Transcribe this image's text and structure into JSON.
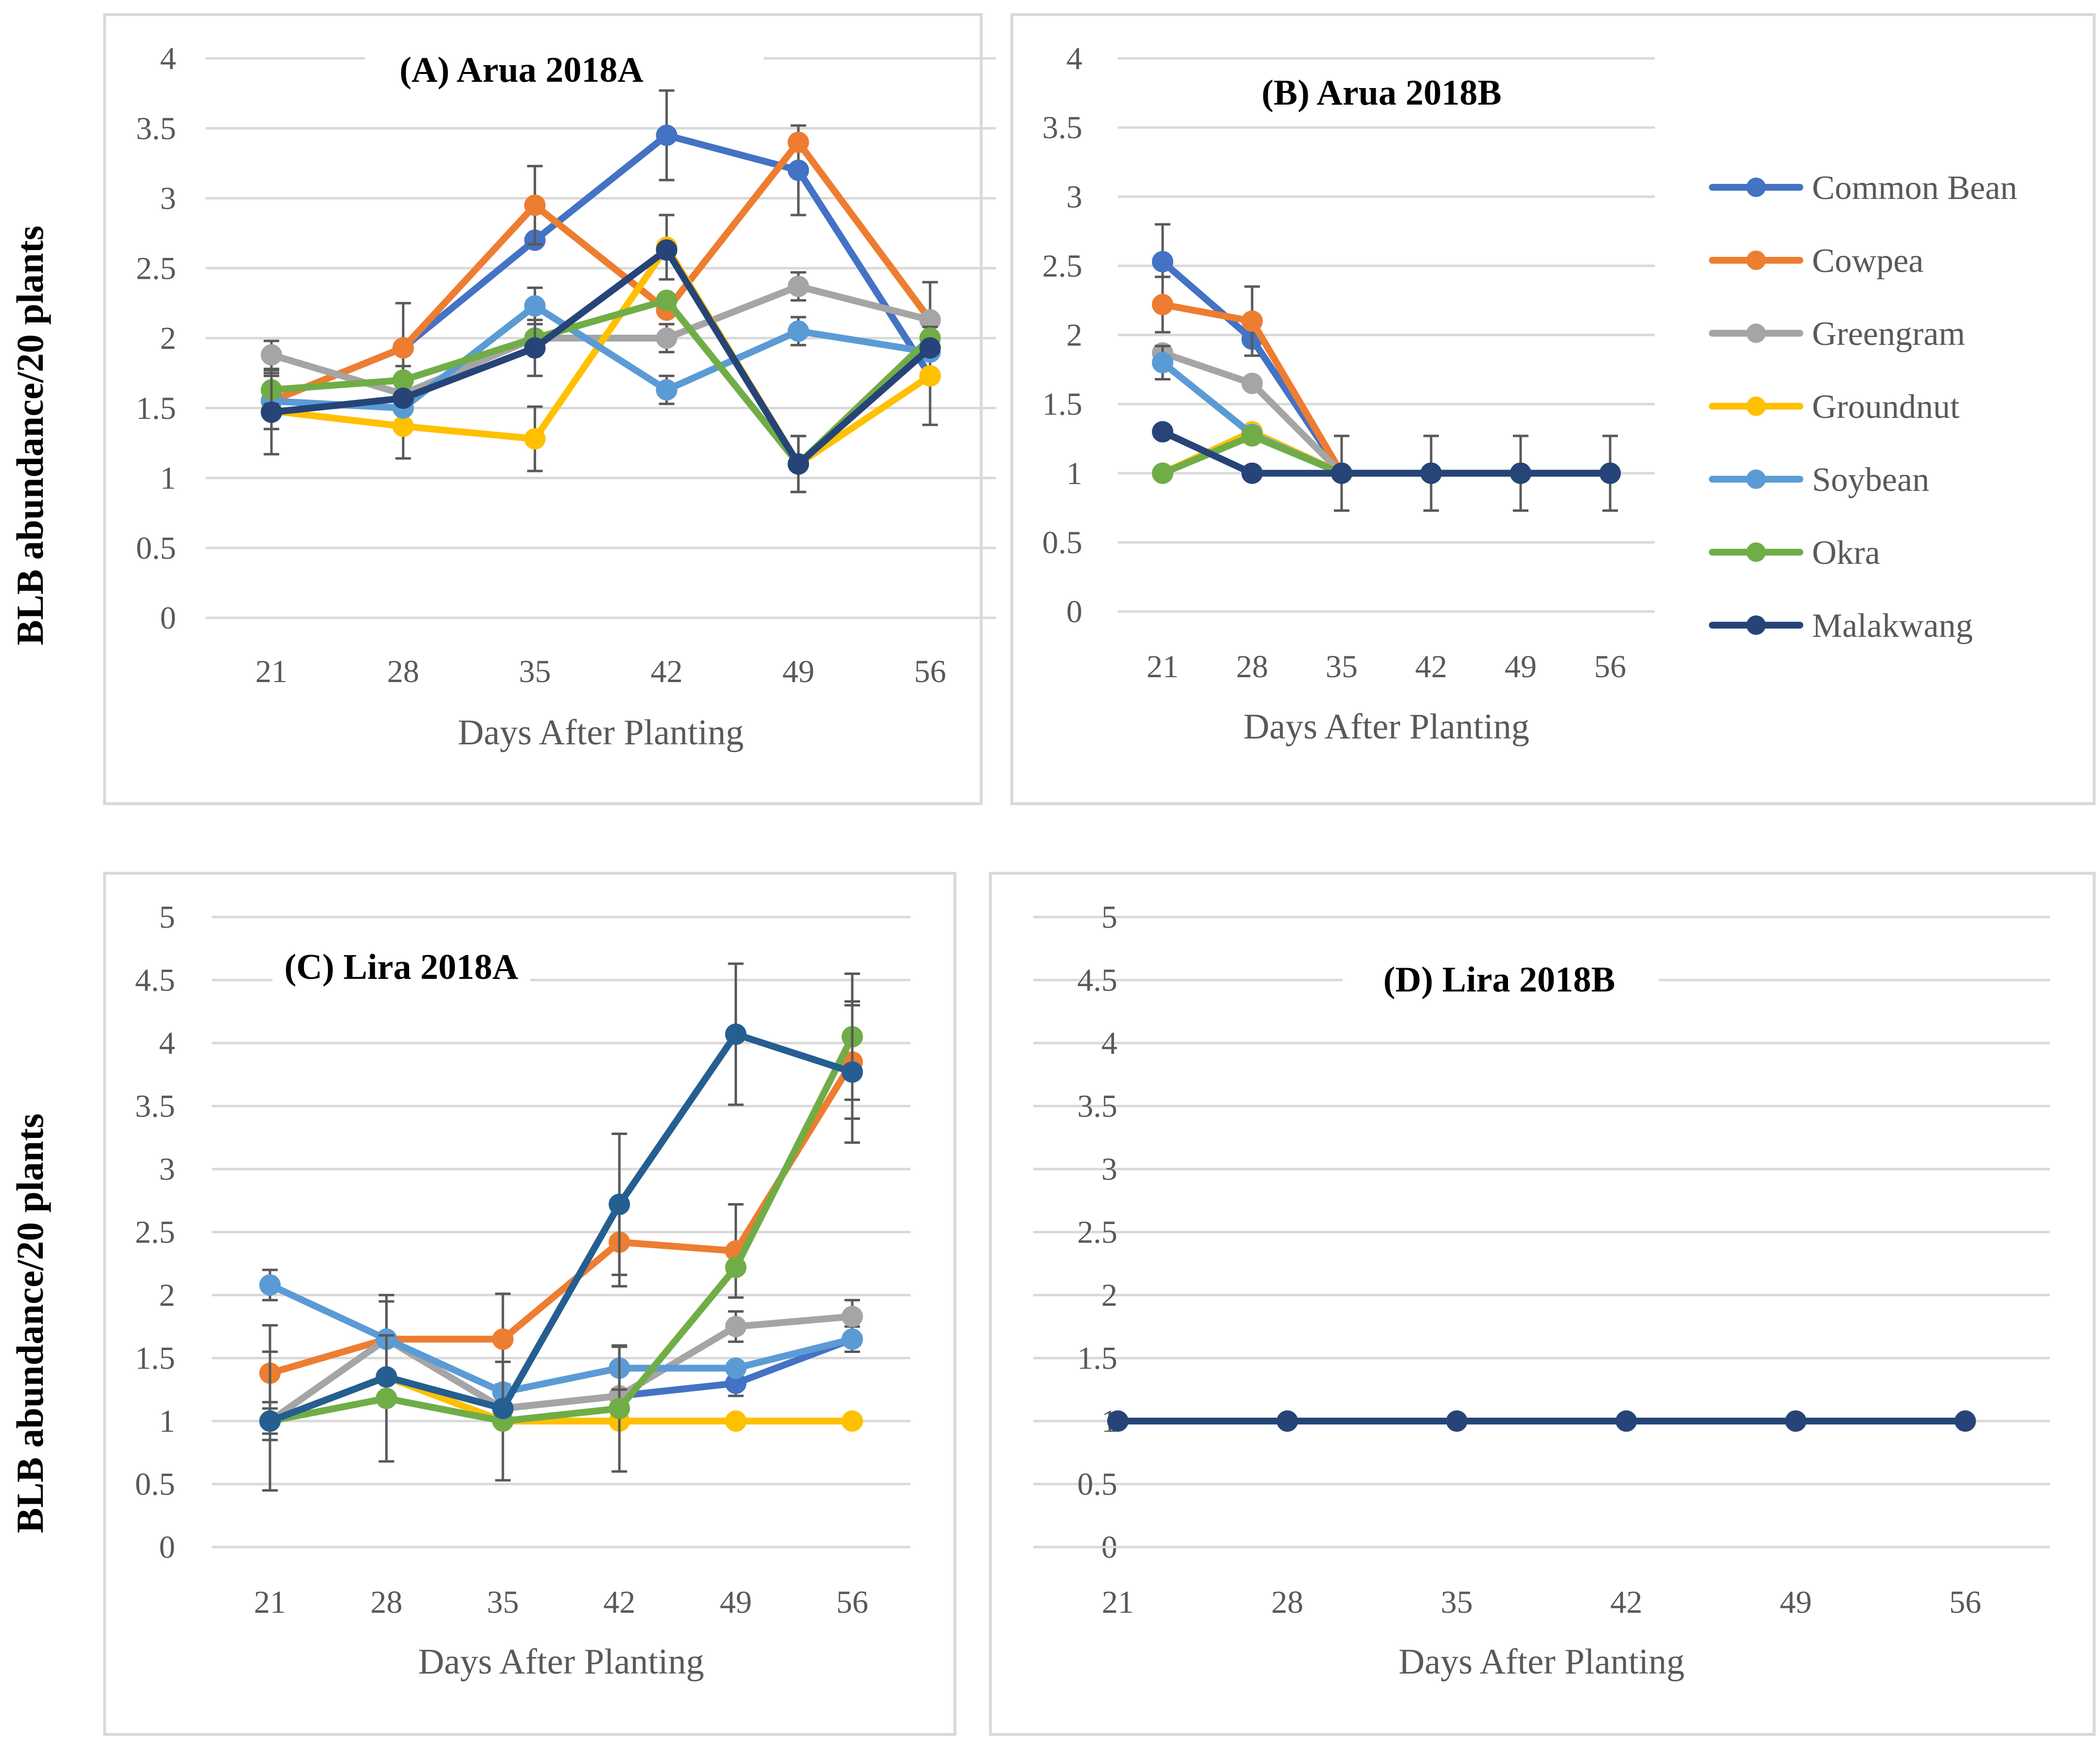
{
  "figure": {
    "y_axis_label": "BLB abundance/20 plants",
    "legend": [
      {
        "name": "Common Bean",
        "color": "#4472c4"
      },
      {
        "name": "Cowpea",
        "color": "#ed7d31"
      },
      {
        "name": "Greengram",
        "color": "#a5a5a5"
      },
      {
        "name": "Groundnut",
        "color": "#ffc000"
      },
      {
        "name": "Soybean",
        "color": "#5b9bd5"
      },
      {
        "name": "Okra",
        "color": "#70ad47"
      },
      {
        "name": "Malakwang",
        "color": "#264478"
      }
    ]
  },
  "chart_data": [
    {
      "type": "line",
      "title": "(A)  Arua 2018A",
      "xlabel": "Days After Planting",
      "ylabel": "BLB abundance/20 plants",
      "x": [
        "21",
        "28",
        "35",
        "42",
        "49",
        "56"
      ],
      "ylim": [
        0,
        4
      ],
      "ytick_step": 0.5,
      "yticks": [
        "0",
        "0.5",
        "1",
        "1.5",
        "2",
        "2.5",
        "3",
        "3.5",
        "4"
      ],
      "series": [
        {
          "name": "Common Bean",
          "color": "#4472c4",
          "values": [
            1.55,
            1.93,
            2.7,
            3.45,
            3.2,
            1.73
          ],
          "errors": [
            0,
            0,
            0,
            0.32,
            0.32,
            0
          ]
        },
        {
          "name": "Cowpea",
          "color": "#ed7d31",
          "values": [
            1.55,
            1.93,
            2.95,
            2.2,
            3.4,
            2.13
          ],
          "errors": [
            0,
            0.32,
            0.28,
            0,
            0,
            0.27
          ]
        },
        {
          "name": "Greengram",
          "color": "#a5a5a5",
          "values": [
            1.88,
            1.6,
            2.0,
            2.0,
            2.37,
            2.13
          ],
          "errors": [
            0.1,
            0,
            0,
            0.1,
            0.1,
            0
          ]
        },
        {
          "name": "Groundnut",
          "color": "#ffc000",
          "values": [
            1.48,
            1.37,
            1.28,
            2.65,
            1.1,
            1.73
          ],
          "errors": [
            0,
            0.23,
            0.23,
            0.23,
            0,
            0.35
          ]
        },
        {
          "name": "Soybean",
          "color": "#5b9bd5",
          "values": [
            1.55,
            1.5,
            2.23,
            1.63,
            2.05,
            1.9
          ],
          "errors": [
            0.2,
            0,
            0.13,
            0.1,
            0.1,
            0
          ]
        },
        {
          "name": "Okra",
          "color": "#70ad47",
          "values": [
            1.63,
            1.7,
            2.0,
            2.27,
            1.1,
            2.0
          ],
          "errors": [
            0.1,
            0.1,
            0,
            0,
            0.2,
            0
          ]
        },
        {
          "name": "Malakwang",
          "color": "#264478",
          "values": [
            1.47,
            1.57,
            1.93,
            2.63,
            1.1,
            1.93
          ],
          "errors": [
            0.3,
            0,
            0.2,
            0,
            0.2,
            0
          ]
        }
      ]
    },
    {
      "type": "line",
      "title": "(B) Arua 2018B",
      "xlabel": "Days After Planting",
      "ylabel": "BLB abundance/20 plants",
      "x": [
        "21",
        "28",
        "35",
        "42",
        "49",
        "56"
      ],
      "ylim": [
        0,
        4
      ],
      "ytick_step": 0.5,
      "yticks": [
        "0",
        "0.5",
        "1",
        "1.5",
        "2",
        "2.5",
        "3",
        "3.5",
        "4"
      ],
      "series": [
        {
          "name": "Common Bean",
          "color": "#4472c4",
          "values": [
            2.53,
            1.97,
            1.0,
            1.0,
            1.0,
            1.0
          ],
          "errors": [
            0.27,
            0,
            0,
            0,
            0,
            0
          ]
        },
        {
          "name": "Cowpea",
          "color": "#ed7d31",
          "values": [
            2.22,
            2.1,
            1.0,
            1.0,
            1.0,
            1.0
          ],
          "errors": [
            0.2,
            0.25,
            0,
            0,
            0,
            0
          ]
        },
        {
          "name": "Greengram",
          "color": "#a5a5a5",
          "values": [
            1.87,
            1.65,
            1.0,
            1.0,
            1.0,
            1.0
          ],
          "errors": [
            0,
            0,
            0,
            0,
            0,
            0
          ]
        },
        {
          "name": "Groundnut",
          "color": "#ffc000",
          "values": [
            1.0,
            1.3,
            1.0,
            1.0,
            1.0,
            1.0
          ],
          "errors": [
            0,
            0,
            0,
            0,
            0,
            0
          ]
        },
        {
          "name": "Soybean",
          "color": "#5b9bd5",
          "values": [
            1.8,
            1.28,
            1.0,
            1.0,
            1.0,
            1.0
          ],
          "errors": [
            0.12,
            0,
            0,
            0,
            0,
            0
          ]
        },
        {
          "name": "Okra",
          "color": "#70ad47",
          "values": [
            1.0,
            1.27,
            1.0,
            1.0,
            1.0,
            1.0
          ],
          "errors": [
            0,
            0,
            0,
            0,
            0,
            0
          ]
        },
        {
          "name": "Malakwang",
          "color": "#264478",
          "values": [
            1.3,
            1.0,
            1.0,
            1.0,
            1.0,
            1.0
          ],
          "errors": [
            0,
            0,
            0.27,
            0.27,
            0.27,
            0.27
          ]
        }
      ]
    },
    {
      "type": "line",
      "title": "(C) Lira 2018A",
      "xlabel": "Days After Planting",
      "ylabel": "BLB abundance/20 plants",
      "x": [
        "21",
        "28",
        "35",
        "42",
        "49",
        "56"
      ],
      "ylim": [
        0,
        5
      ],
      "ytick_step": 0.5,
      "yticks": [
        "0",
        "0.5",
        "1",
        "1.5",
        "2",
        "2.5",
        "3",
        "3.5",
        "4",
        "4.5",
        "5"
      ],
      "series": [
        {
          "name": "Common Bean",
          "color": "#4472c4",
          "values": [
            1.0,
            1.35,
            1.1,
            1.2,
            1.3,
            1.65
          ],
          "errors": [
            0,
            0,
            0,
            0,
            0.1,
            0.1
          ]
        },
        {
          "name": "Cowpea",
          "color": "#ed7d31",
          "values": [
            1.38,
            1.65,
            1.65,
            2.42,
            2.35,
            3.85
          ],
          "errors": [
            0.38,
            0.35,
            0.36,
            0.35,
            0.37,
            0.45
          ]
        },
        {
          "name": "Greengram",
          "color": "#a5a5a5",
          "values": [
            1.0,
            1.65,
            1.1,
            1.2,
            1.75,
            1.83
          ],
          "errors": [
            0.15,
            0,
            0,
            0,
            0.12,
            0.13
          ]
        },
        {
          "name": "Groundnut",
          "color": "#ffc000",
          "values": [
            1.0,
            1.35,
            1.0,
            1.0,
            1.0,
            1.0
          ],
          "errors": [
            0,
            0,
            0,
            0,
            0,
            0
          ]
        },
        {
          "name": "Soybean",
          "color": "#5b9bd5",
          "values": [
            2.08,
            1.65,
            1.23,
            1.42,
            1.42,
            1.65
          ],
          "errors": [
            0.12,
            0.3,
            0,
            0.17,
            0,
            0
          ]
        },
        {
          "name": "Okra",
          "color": "#70ad47",
          "values": [
            1.0,
            1.18,
            1.0,
            1.1,
            2.22,
            4.05
          ],
          "errors": [
            0.55,
            0.5,
            0.47,
            0.5,
            0,
            0.5
          ]
        },
        {
          "name": "Malakwang",
          "color": "#255e91",
          "values": [
            1.0,
            1.35,
            1.1,
            2.72,
            4.07,
            3.77
          ],
          "errors": [
            0.1,
            0,
            0,
            0.56,
            0.56,
            0.56
          ]
        }
      ]
    },
    {
      "type": "line",
      "title": "(D) Lira 2018B",
      "xlabel": "Days After Planting",
      "ylabel": "BLB abundance/20 plants",
      "x": [
        "21",
        "28",
        "35",
        "42",
        "49",
        "56"
      ],
      "ylim": [
        0,
        5
      ],
      "ytick_step": 0.5,
      "yticks": [
        "0",
        "0.5",
        "1",
        "1.5",
        "2",
        "2.5",
        "3",
        "3.5",
        "4",
        "4.5",
        "5"
      ],
      "series": [
        {
          "name": "Malakwang",
          "color": "#264478",
          "values": [
            1.0,
            1.0,
            1.0,
            1.0,
            1.0,
            1.0
          ],
          "errors": [
            0,
            0,
            0,
            0,
            0,
            0
          ]
        }
      ]
    }
  ]
}
